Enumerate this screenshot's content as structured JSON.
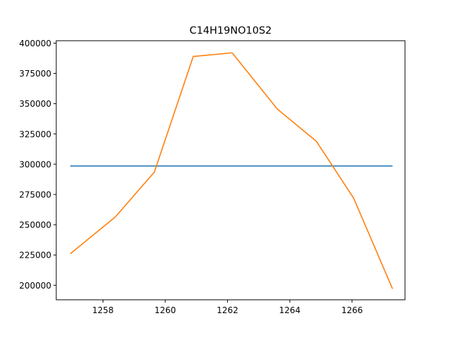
{
  "chart_data": {
    "type": "line",
    "title": "C14H19NO10S2",
    "xlabel": "",
    "ylabel": "",
    "xlim": [
      1256.5,
      1267.7
    ],
    "ylim": [
      188000,
      402000
    ],
    "x_ticks": [
      1258,
      1260,
      1262,
      1264,
      1266
    ],
    "y_ticks": [
      200000,
      225000,
      250000,
      275000,
      300000,
      325000,
      350000,
      375000,
      400000
    ],
    "x_tick_labels": [
      "1258",
      "1260",
      "1262",
      "1264",
      "1266"
    ],
    "y_tick_labels": [
      "200000",
      "225000",
      "250000",
      "275000",
      "300000",
      "325000",
      "350000",
      "375000",
      "400000"
    ],
    "grid": false,
    "series": [
      {
        "color": "#1f77b4",
        "x": [
          1256.95,
          1267.3
        ],
        "y": [
          298500,
          298500
        ]
      },
      {
        "color": "#ff7f0e",
        "x": [
          1256.95,
          1258.4,
          1259.65,
          1260.9,
          1262.15,
          1263.6,
          1264.85,
          1266.05,
          1267.3
        ],
        "y": [
          226000,
          256500,
          293500,
          389000,
          392000,
          345500,
          319000,
          272000,
          197000
        ]
      }
    ]
  }
}
